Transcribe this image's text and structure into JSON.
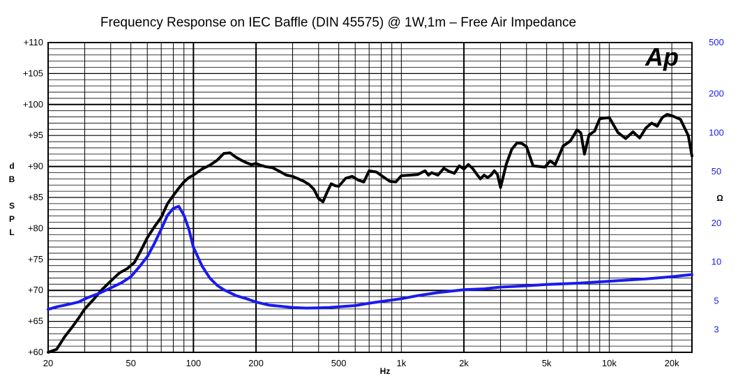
{
  "chart_data": {
    "type": "line",
    "title": "Frequency Response on IEC Baffle (DIN 45575)  @ 1W,1m – Free Air Impedance",
    "logo_text": "Ap",
    "xlabel": "Hz",
    "ylabel_left": [
      "d",
      "B",
      "",
      "S",
      "P",
      "L"
    ],
    "ylabel_right": "Ω",
    "x_scale": "log",
    "xlim": [
      20,
      25000
    ],
    "ylim_left": [
      60,
      110
    ],
    "ylim_right": [
      2,
      500
    ],
    "right_scale": "log",
    "grid": true,
    "colors": {
      "spl": "#000000",
      "impedance": "#1a1aee",
      "right_axis": "#1a1aee"
    },
    "x_ticks": [
      {
        "value": 20,
        "label": "20"
      },
      {
        "value": 50,
        "label": "50"
      },
      {
        "value": 100,
        "label": "100"
      },
      {
        "value": 200,
        "label": "200"
      },
      {
        "value": 500,
        "label": "500"
      },
      {
        "value": 1000,
        "label": "1k"
      },
      {
        "value": 2000,
        "label": "2k"
      },
      {
        "value": 5000,
        "label": "5k"
      },
      {
        "value": 10000,
        "label": "10k"
      },
      {
        "value": 20000,
        "label": "20k"
      }
    ],
    "y_ticks_left": [
      {
        "value": 110,
        "label": "+110"
      },
      {
        "value": 105,
        "label": "+105"
      },
      {
        "value": 100,
        "label": "+100"
      },
      {
        "value": 95,
        "label": "+95"
      },
      {
        "value": 90,
        "label": "+90"
      },
      {
        "value": 85,
        "label": "+85"
      },
      {
        "value": 80,
        "label": "+80"
      },
      {
        "value": 75,
        "label": "+75"
      },
      {
        "value": 70,
        "label": "+70"
      },
      {
        "value": 65,
        "label": "+65"
      },
      {
        "value": 60,
        "label": "+60"
      }
    ],
    "y_ticks_right": [
      {
        "value": 500,
        "label": "500"
      },
      {
        "value": 200,
        "label": "200"
      },
      {
        "value": 100,
        "label": "100"
      },
      {
        "value": 50,
        "label": "50"
      },
      {
        "value": 20,
        "label": "20"
      },
      {
        "value": 10,
        "label": "10"
      },
      {
        "value": 5,
        "label": "5"
      },
      {
        "value": 3,
        "label": "3"
      }
    ],
    "series": [
      {
        "axis": "left",
        "x": [
          20,
          22,
          24,
          26,
          28,
          30,
          33,
          36,
          40,
          44,
          48,
          52,
          56,
          60,
          65,
          70,
          75,
          80,
          85,
          90,
          95,
          100,
          110,
          120,
          130,
          140,
          150,
          160,
          170,
          180,
          190,
          200,
          210,
          220,
          240,
          260,
          280,
          300,
          320,
          340,
          360,
          380,
          400,
          420,
          440,
          460,
          480,
          500,
          540,
          580,
          620,
          660,
          700,
          760,
          820,
          880,
          940,
          1000,
          1100,
          1200,
          1300,
          1350,
          1400,
          1500,
          1600,
          1700,
          1800,
          1900,
          2000,
          2100,
          2200,
          2300,
          2400,
          2500,
          2600,
          2700,
          2800,
          2900,
          3000,
          3200,
          3400,
          3600,
          3800,
          4000,
          4300,
          4600,
          4900,
          5200,
          5500,
          6000,
          6500,
          7000,
          7300,
          7600,
          8000,
          8500,
          9000,
          9500,
          10000,
          11000,
          12000,
          13000,
          14000,
          15000,
          16000,
          17000,
          18000,
          19000,
          20000,
          22000,
          24000,
          25000
        ],
        "y": [
          60,
          60.5,
          62.5,
          64,
          65.5,
          67,
          68.5,
          70,
          71.5,
          72.8,
          73.5,
          74.5,
          76.5,
          78.5,
          80.3,
          81.8,
          84,
          85.3,
          86.5,
          87.5,
          88.2,
          88.6,
          89.6,
          90.2,
          91,
          92.1,
          92.2,
          91.5,
          91,
          90.6,
          90.3,
          90.5,
          90.2,
          90,
          89.8,
          89.2,
          88.6,
          88.4,
          88,
          87.6,
          87.1,
          86.3,
          84.8,
          84.3,
          85.9,
          87.2,
          86.9,
          86.8,
          88.1,
          88.4,
          87.8,
          87.5,
          89.3,
          89.1,
          88.3,
          87.6,
          87.5,
          88.5,
          88.6,
          88.7,
          89.3,
          88.6,
          89,
          88.6,
          89.7,
          89.2,
          88.9,
          90.1,
          89.6,
          90.3,
          89.7,
          88.8,
          88,
          88.6,
          88.2,
          88.6,
          89.3,
          88.7,
          86.6,
          90.4,
          92.8,
          93.8,
          93.7,
          93.2,
          90.1,
          90,
          89.9,
          90.9,
          90.3,
          93.3,
          94.1,
          95.9,
          95.4,
          92,
          95.1,
          95.7,
          97.7,
          97.8,
          97.9,
          95.5,
          94.5,
          95.6,
          94.6,
          96.2,
          97,
          96.5,
          97.9,
          98.4,
          98.2,
          97.6,
          95,
          91.7
        ]
      },
      {
        "axis": "right",
        "x": [
          20,
          22,
          25,
          28,
          31,
          35,
          40,
          45,
          50,
          55,
          60,
          65,
          70,
          75,
          80,
          85,
          90,
          95,
          100,
          110,
          120,
          130,
          140,
          160,
          180,
          200,
          230,
          260,
          300,
          350,
          400,
          450,
          500,
          600,
          700,
          800,
          1000,
          1200,
          1500,
          2000,
          2500,
          3000,
          4000,
          5000,
          7000,
          10000,
          15000,
          20000,
          25000
        ],
        "y": [
          4.3,
          4.5,
          4.7,
          4.9,
          5.3,
          5.7,
          6.3,
          6.9,
          7.7,
          9.2,
          11,
          14,
          18,
          23,
          26,
          27,
          23,
          18,
          13,
          9.3,
          7.5,
          6.6,
          6.1,
          5.5,
          5.2,
          4.9,
          4.65,
          4.55,
          4.45,
          4.4,
          4.42,
          4.45,
          4.5,
          4.6,
          4.8,
          4.95,
          5.2,
          5.5,
          5.8,
          6.1,
          6.2,
          6.4,
          6.55,
          6.7,
          6.85,
          7.1,
          7.4,
          7.7,
          8
        ]
      }
    ]
  }
}
